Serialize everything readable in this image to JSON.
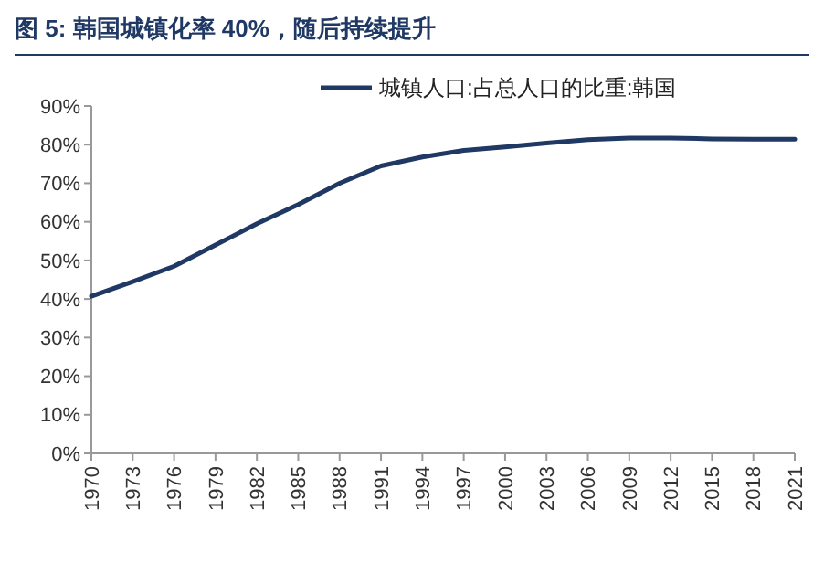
{
  "chart_data": {
    "type": "line",
    "title": "图 5: 韩国城镇化率 40%，随后持续提升",
    "x": [
      1970,
      1973,
      1976,
      1979,
      1982,
      1985,
      1988,
      1991,
      1994,
      1997,
      2000,
      2003,
      2006,
      2009,
      2012,
      2015,
      2018,
      2021
    ],
    "series": [
      {
        "name": "城镇人口:占总人口的比重:韩国",
        "color": "#1f3864",
        "values": [
          40.7,
          44.5,
          48.5,
          54,
          59.5,
          64.5,
          70,
          74.5,
          76.8,
          78.5,
          79.4,
          80.4,
          81.3,
          81.7,
          81.7,
          81.5,
          81.4,
          81.4
        ]
      }
    ],
    "xlim": [
      1970,
      2021
    ],
    "xticks": [
      1970,
      1973,
      1976,
      1979,
      1982,
      1985,
      1988,
      1991,
      1994,
      1997,
      2000,
      2003,
      2006,
      2009,
      2012,
      2015,
      2018,
      2021
    ],
    "ylim": [
      0,
      90
    ],
    "yticks": [
      {
        "value": 0,
        "label": "0%"
      },
      {
        "value": 10,
        "label": "10%"
      },
      {
        "value": 20,
        "label": "20%"
      },
      {
        "value": 30,
        "label": "30%"
      },
      {
        "value": 40,
        "label": "40%"
      },
      {
        "value": 50,
        "label": "50%"
      },
      {
        "value": 60,
        "label": "60%"
      },
      {
        "value": 70,
        "label": "70%"
      },
      {
        "value": 80,
        "label": "80%"
      },
      {
        "value": 90,
        "label": "90%"
      }
    ],
    "grid": false,
    "legend": "top",
    "marker": "none",
    "line_style": "solid"
  }
}
